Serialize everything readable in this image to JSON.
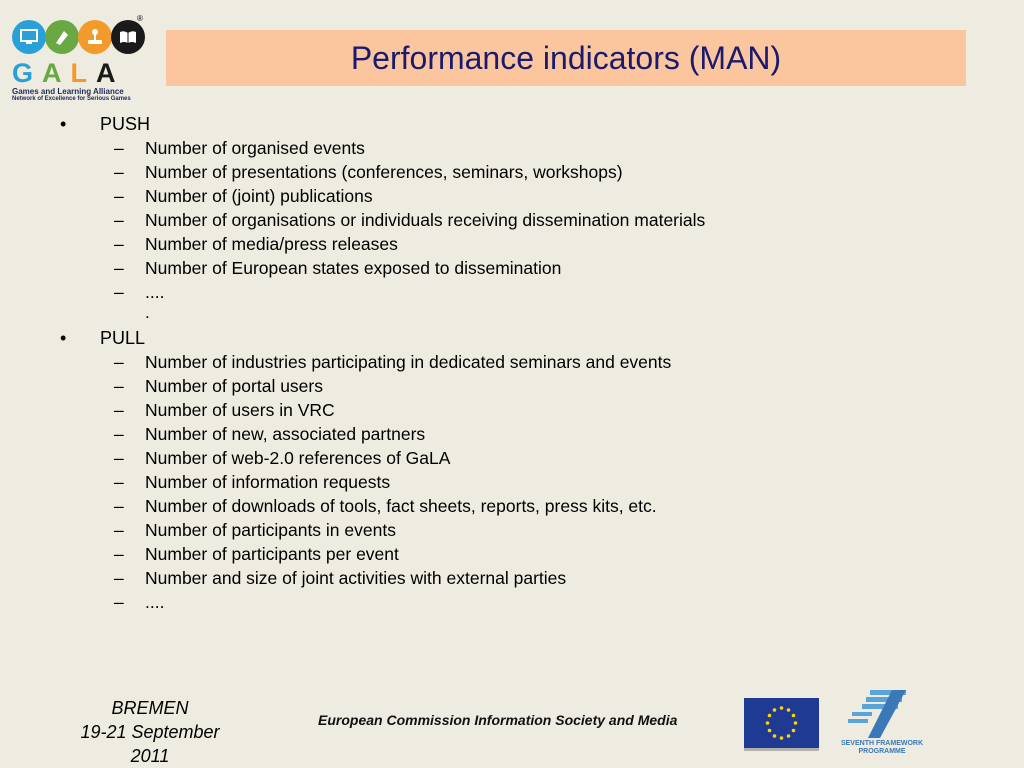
{
  "logo": {
    "letters": [
      "G",
      "A",
      "L",
      "A"
    ],
    "tagline1": "Games and Learning Alliance",
    "tagline2": "Network of Excellence for Serious Games",
    "registered": "®",
    "colors": {
      "blue": "#2aa0d8",
      "green": "#6aa843",
      "orange": "#f39a2d",
      "black": "#1a1a1a"
    },
    "icons": [
      "monitor-icon",
      "pen-icon",
      "joystick-icon",
      "book-icon"
    ]
  },
  "title": "Performance indicators (MAN)",
  "sections": [
    {
      "bullet": "•",
      "label": "PUSH",
      "items": [
        "Number of organised events",
        "Number of presentations (conferences, seminars, workshops)",
        "Number of (joint) publications",
        "Number of organisations or individuals receiving dissemination materials",
        "Number of media/press releases",
        "Number of European states exposed to dissemination",
        "...."
      ],
      "trailing": "."
    },
    {
      "bullet": "•",
      "label": "PULL",
      "items": [
        "Number of industries participating in dedicated seminars and events",
        "Number of portal users",
        "Number of users in VRC",
        "Number of new, associated partners",
        "Number of web-2.0 references of GaLA",
        "Number of information requests",
        "Number of downloads of tools, fact sheets, reports, press kits, etc.",
        "Number of participants in events",
        "Number of participants per event",
        "Number and size of joint activities with external parties",
        "...."
      ]
    }
  ],
  "dash": "–",
  "footer": {
    "city": "BREMEN",
    "dates": "19-21 September 2011",
    "commission": "European Commission Information Society and Media",
    "fp7_line1": "SEVENTH FRAMEWORK",
    "fp7_line2": "PROGRAMME"
  }
}
